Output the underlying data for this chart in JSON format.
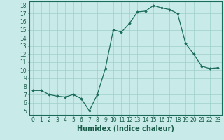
{
  "x": [
    0,
    1,
    2,
    3,
    4,
    5,
    6,
    7,
    8,
    9,
    10,
    11,
    12,
    13,
    14,
    15,
    16,
    17,
    18,
    19,
    20,
    21,
    22,
    23
  ],
  "y": [
    7.5,
    7.5,
    7.0,
    6.8,
    6.7,
    7.0,
    6.5,
    5.0,
    7.0,
    10.2,
    15.0,
    14.7,
    15.8,
    17.2,
    17.3,
    18.0,
    17.7,
    17.5,
    17.0,
    13.3,
    12.0,
    10.5,
    10.2,
    10.3
  ],
  "xlabel": "Humidex (Indice chaleur)",
  "xlim": [
    -0.5,
    23.5
  ],
  "ylim": [
    4.5,
    18.5
  ],
  "yticks": [
    5,
    6,
    7,
    8,
    9,
    10,
    11,
    12,
    13,
    14,
    15,
    16,
    17,
    18
  ],
  "xticks": [
    0,
    1,
    2,
    3,
    4,
    5,
    6,
    7,
    8,
    9,
    10,
    11,
    12,
    13,
    14,
    15,
    16,
    17,
    18,
    19,
    20,
    21,
    22,
    23
  ],
  "line_color": "#1a6b5a",
  "marker": "D",
  "marker_size": 1.8,
  "bg_color": "#c8eae8",
  "grid_color": "#9ecfcc",
  "label_color": "#1a5c4a",
  "tick_label_fontsize": 5.5,
  "xlabel_fontsize": 7.0
}
